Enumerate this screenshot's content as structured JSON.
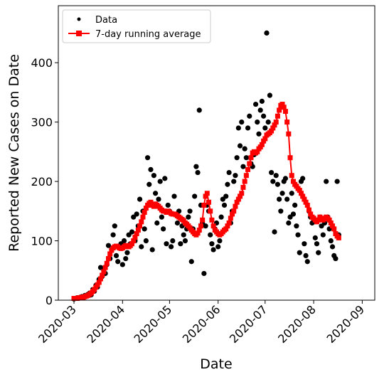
{
  "chart_data": {
    "type": "line",
    "xlabel": "Date",
    "ylabel": "Reported New Cases on Date",
    "xlim": [
      -10,
      192
    ],
    "ylim": [
      0,
      496
    ],
    "xticks": [
      {
        "value": 0,
        "label": "2020-03"
      },
      {
        "value": 31,
        "label": "2020-04"
      },
      {
        "value": 61,
        "label": "2020-05"
      },
      {
        "value": 92,
        "label": "2020-06"
      },
      {
        "value": 122,
        "label": "2020-07"
      },
      {
        "value": 153,
        "label": "2020-08"
      },
      {
        "value": 184,
        "label": "2020-09"
      }
    ],
    "yticks": [
      0,
      100,
      200,
      300,
      400
    ],
    "legend": "upper left",
    "grid": false,
    "x": [
      0,
      1,
      2,
      3,
      4,
      5,
      6,
      7,
      8,
      9,
      10,
      11,
      12,
      13,
      14,
      15,
      16,
      17,
      18,
      19,
      20,
      21,
      22,
      23,
      24,
      25,
      26,
      27,
      28,
      29,
      30,
      31,
      32,
      33,
      34,
      35,
      36,
      37,
      38,
      39,
      40,
      41,
      42,
      43,
      44,
      45,
      46,
      47,
      48,
      49,
      50,
      51,
      52,
      53,
      54,
      55,
      56,
      57,
      58,
      59,
      60,
      61,
      62,
      63,
      64,
      65,
      66,
      67,
      68,
      69,
      70,
      71,
      72,
      73,
      74,
      75,
      76,
      77,
      78,
      79,
      80,
      81,
      82,
      83,
      84,
      85,
      86,
      87,
      88,
      89,
      90,
      91,
      92,
      93,
      94,
      95,
      96,
      97,
      98,
      99,
      100,
      101,
      102,
      103,
      104,
      105,
      106,
      107,
      108,
      109,
      110,
      111,
      112,
      113,
      114,
      115,
      116,
      117,
      118,
      119,
      120,
      121,
      122,
      123,
      124,
      125,
      126,
      127,
      128,
      129,
      130,
      131,
      132,
      133,
      134,
      135,
      136,
      137,
      138,
      139,
      140,
      141,
      142,
      143,
      144,
      145,
      146,
      147,
      148,
      149,
      150,
      151,
      152,
      153,
      154,
      155,
      156,
      157,
      158,
      159,
      160,
      161,
      162,
      163,
      164,
      165,
      166,
      167,
      168,
      169
    ],
    "series": [
      {
        "name": "Data",
        "color": "#000000",
        "marker": "circle",
        "linestyle": "none",
        "values": [
          2,
          3,
          4,
          3,
          5,
          6,
          4,
          8,
          7,
          10,
          12,
          9,
          18,
          15,
          25,
          22,
          35,
          55,
          40,
          50,
          45,
          60,
          92,
          70,
          85,
          110,
          125,
          75,
          65,
          90,
          95,
          60,
          100,
          70,
          80,
          110,
          95,
          115,
          140,
          100,
          145,
          125,
          170,
          90,
          150,
          120,
          100,
          240,
          195,
          220,
          85,
          210,
          180,
          130,
          170,
          200,
          140,
          120,
          205,
          95,
          160,
          150,
          90,
          100,
          175,
          145,
          130,
          150,
          95,
          125,
          110,
          100,
          120,
          140,
          150,
          65,
          120,
          175,
          225,
          215,
          320,
          160,
          130,
          45,
          125,
          160,
          150,
          110,
          95,
          85,
          120,
          130,
          90,
          100,
          140,
          170,
          160,
          175,
          195,
          215,
          130,
          150,
          200,
          210,
          240,
          290,
          260,
          300,
          225,
          255,
          240,
          290,
          310,
          230,
          225,
          245,
          330,
          300,
          280,
          320,
          335,
          310,
          290,
          450,
          300,
          345,
          215,
          200,
          115,
          210,
          195,
          170,
          150,
          180,
          200,
          205,
          170,
          130,
          140,
          180,
          145,
          160,
          125,
          110,
          80,
          200,
          205,
          95,
          75,
          65,
          150,
          140,
          130,
          135,
          105,
          95,
          80,
          140,
          125,
          110,
          130,
          200,
          140,
          120,
          100,
          90,
          75,
          70,
          200,
          110
        ]
      },
      {
        "name": "7-day running average",
        "color": "#ff0000",
        "marker": "square",
        "linestyle": "solid",
        "values": [
          3,
          3,
          3,
          4,
          4,
          5,
          5,
          6,
          7,
          8,
          10,
          12,
          15,
          18,
          22,
          26,
          30,
          36,
          42,
          48,
          55,
          62,
          70,
          78,
          84,
          88,
          90,
          91,
          90,
          88,
          87,
          88,
          90,
          92,
          91,
          90,
          92,
          95,
          100,
          106,
          112,
          118,
          125,
          132,
          140,
          148,
          155,
          160,
          163,
          165,
          160,
          158,
          162,
          160,
          158,
          155,
          152,
          150,
          150,
          148,
          150,
          148,
          146,
          145,
          145,
          144,
          142,
          140,
          138,
          136,
          134,
          130,
          128,
          125,
          122,
          118,
          115,
          112,
          110,
          113,
          118,
          125,
          135,
          160,
          175,
          180,
          165,
          150,
          135,
          125,
          118,
          115,
          112,
          110,
          112,
          115,
          118,
          120,
          125,
          130,
          138,
          145,
          150,
          158,
          165,
          170,
          175,
          180,
          190,
          200,
          210,
          220,
          230,
          240,
          248,
          250,
          248,
          250,
          255,
          258,
          262,
          268,
          272,
          278,
          280,
          282,
          285,
          290,
          295,
          300,
          310,
          320,
          328,
          330,
          325,
          318,
          300,
          280,
          240,
          210,
          200,
          195,
          192,
          188,
          185,
          180,
          175,
          170,
          165,
          160,
          152,
          145,
          140,
          138,
          135,
          132,
          135,
          140,
          138,
          135,
          137,
          140,
          138,
          135,
          130,
          125,
          120,
          112,
          108,
          105
        ]
      }
    ]
  }
}
